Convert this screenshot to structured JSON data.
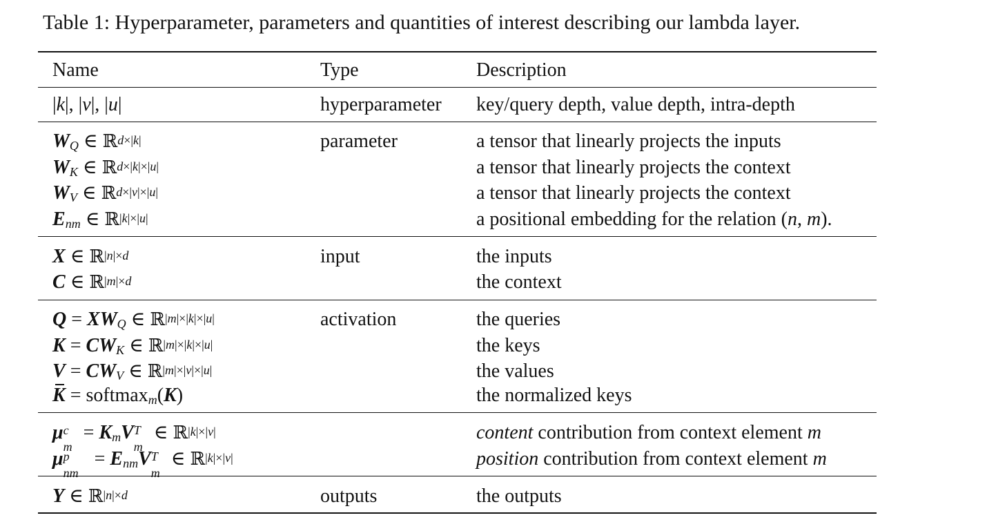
{
  "caption": "Table 1: Hyperparameter, parameters and quantities of interest describing our lambda layer.",
  "headers": {
    "name": "Name",
    "type": "Type",
    "description": "Description"
  },
  "rows": {
    "r0": {
      "type": "hyperparameter",
      "desc": [
        "key/query depth, value depth, intra-depth"
      ]
    },
    "r1": {
      "type": "parameter",
      "desc": [
        "a tensor that linearly projects the inputs",
        "a tensor that linearly projects the context",
        "a tensor that linearly projects the context",
        "a positional embedding for the relation"
      ]
    },
    "r2": {
      "type": "input",
      "desc": [
        "the inputs",
        "the context"
      ]
    },
    "r3": {
      "type": "activation",
      "desc": [
        "the queries",
        "the keys",
        "the values",
        "the normalized keys"
      ]
    },
    "r4": {
      "type": "",
      "desc_em": [
        "content",
        "position"
      ],
      "desc": [
        "contribution from context element",
        "contribution from context element"
      ]
    },
    "r5": {
      "type": "outputs",
      "desc": [
        "the outputs"
      ]
    }
  }
}
